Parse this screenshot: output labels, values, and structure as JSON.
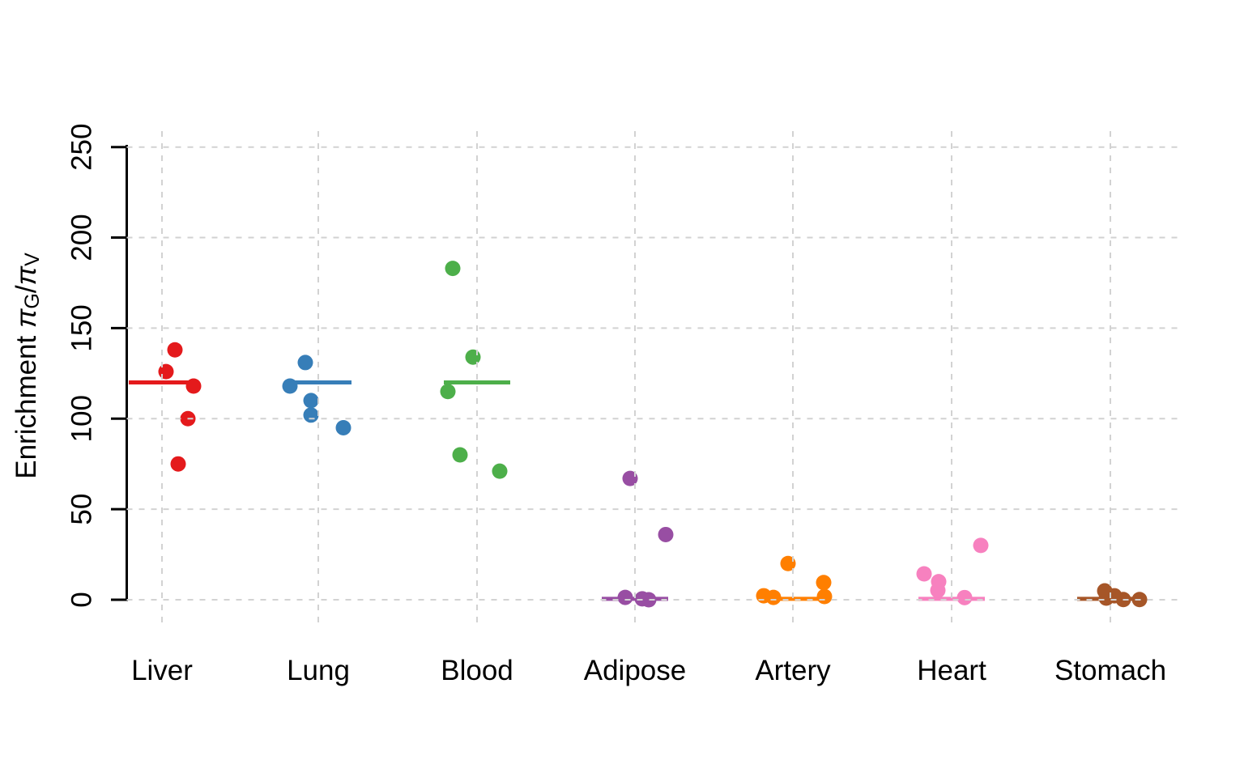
{
  "chart_data": {
    "type": "scatter",
    "subtype": "stripchart",
    "title": "",
    "xlabel": "",
    "ylabel": "Enrichment πG/πV",
    "ylabel_parts": [
      {
        "text": "Enrichment ",
        "italic": false
      },
      {
        "text": "π",
        "italic": true
      },
      {
        "sub": "G"
      },
      {
        "text": "/",
        "italic": false
      },
      {
        "text": "π",
        "italic": true
      },
      {
        "sub": "V"
      }
    ],
    "ylim": [
      0,
      250
    ],
    "yticks": [
      0,
      50,
      100,
      150,
      200,
      250
    ],
    "grid": true,
    "grid_style": "dashed",
    "grid_color": "#d2d2d2",
    "axis_color": "#000000",
    "categories": [
      "Liver",
      "Lung",
      "Blood",
      "Adipose",
      "Artery",
      "Heart",
      "Stomach"
    ],
    "series": [
      {
        "name": "Liver",
        "color": "#E41A1C",
        "center_line_value": 120,
        "points": [
          {
            "v": 138,
            "dx": 16
          },
          {
            "v": 126,
            "dx": 5
          },
          {
            "v": 118,
            "dx": 39
          },
          {
            "v": 100,
            "dx": 32
          },
          {
            "v": 75,
            "dx": 20
          }
        ]
      },
      {
        "name": "Lung",
        "color": "#377EB8",
        "center_line_value": 120,
        "points": [
          {
            "v": 131,
            "dx": -16
          },
          {
            "v": 118,
            "dx": -35
          },
          {
            "v": 110,
            "dx": -9
          },
          {
            "v": 102,
            "dx": -9
          },
          {
            "v": 95,
            "dx": 31
          }
        ]
      },
      {
        "name": "Blood",
        "color": "#4DAF4A",
        "center_line_value": 120,
        "points": [
          {
            "v": 183,
            "dx": -30
          },
          {
            "v": 134,
            "dx": -5
          },
          {
            "v": 115,
            "dx": -36
          },
          {
            "v": 80,
            "dx": -21
          },
          {
            "v": 71,
            "dx": 28
          }
        ]
      },
      {
        "name": "Adipose",
        "color": "#984EA3",
        "center_line_value": 0.5,
        "points": [
          {
            "v": 67,
            "dx": -6
          },
          {
            "v": 36,
            "dx": 38
          },
          {
            "v": 1.3,
            "dx": -12
          },
          {
            "v": 0.5,
            "dx": 9
          },
          {
            "v": 0,
            "dx": 17
          }
        ]
      },
      {
        "name": "Artery",
        "color": "#FF7F00",
        "center_line_value": 0.5,
        "points": [
          {
            "v": 20,
            "dx": -6
          },
          {
            "v": 9.5,
            "dx": 38
          },
          {
            "v": 2.2,
            "dx": -36
          },
          {
            "v": 1.3,
            "dx": -24
          },
          {
            "v": 1.8,
            "dx": 39
          }
        ]
      },
      {
        "name": "Heart",
        "color": "#F781BF",
        "center_line_value": 0.5,
        "points": [
          {
            "v": 30,
            "dx": 36
          },
          {
            "v": 14.3,
            "dx": -34
          },
          {
            "v": 10,
            "dx": -16
          },
          {
            "v": 5.2,
            "dx": -17
          },
          {
            "v": 1.2,
            "dx": 16
          }
        ]
      },
      {
        "name": "Stomach",
        "color": "#A65628",
        "center_line_value": 0.5,
        "points": [
          {
            "v": 4.9,
            "dx": -7
          },
          {
            "v": 2.2,
            "dx": 5
          },
          {
            "v": 0.9,
            "dx": -5
          },
          {
            "v": 0.1,
            "dx": 16
          },
          {
            "v": 0.1,
            "dx": 36
          }
        ]
      }
    ]
  }
}
